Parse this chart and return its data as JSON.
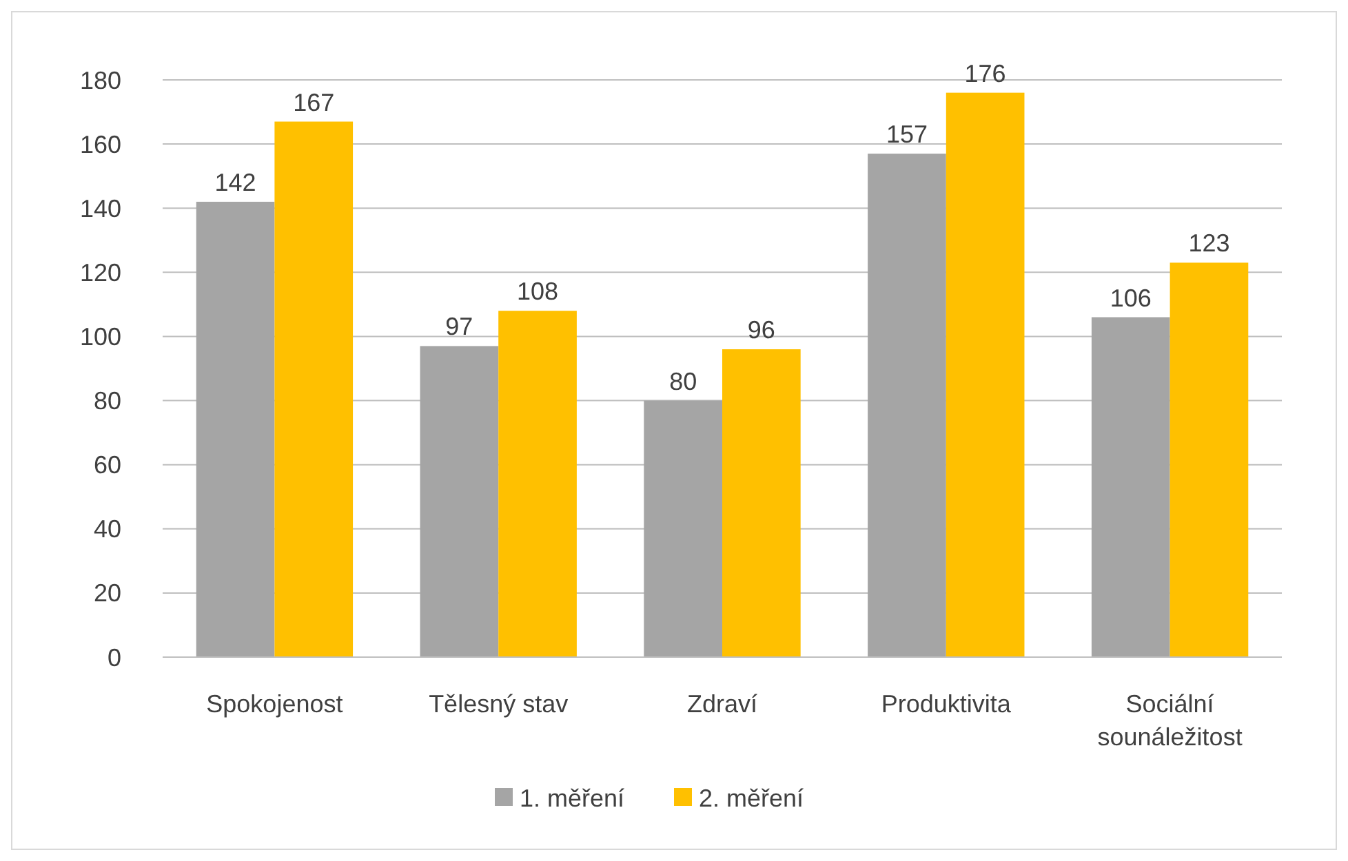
{
  "chart_data": {
    "type": "bar",
    "categories": [
      "Spokojenost",
      "Tělesný stav",
      "Zdraví",
      "Produktivita",
      "Sociální sounáležitost"
    ],
    "series": [
      {
        "name": "1. měření",
        "color": "#a5a5a5",
        "values": [
          142,
          97,
          80,
          157,
          106
        ]
      },
      {
        "name": "2. měření",
        "color": "#ffc000",
        "values": [
          167,
          108,
          96,
          176,
          123
        ]
      }
    ],
    "ylim": [
      0,
      180
    ],
    "yticks": [
      0,
      20,
      40,
      60,
      80,
      100,
      120,
      140,
      160,
      180
    ],
    "grid": "y",
    "legend": "bottom",
    "data_labels": true
  }
}
